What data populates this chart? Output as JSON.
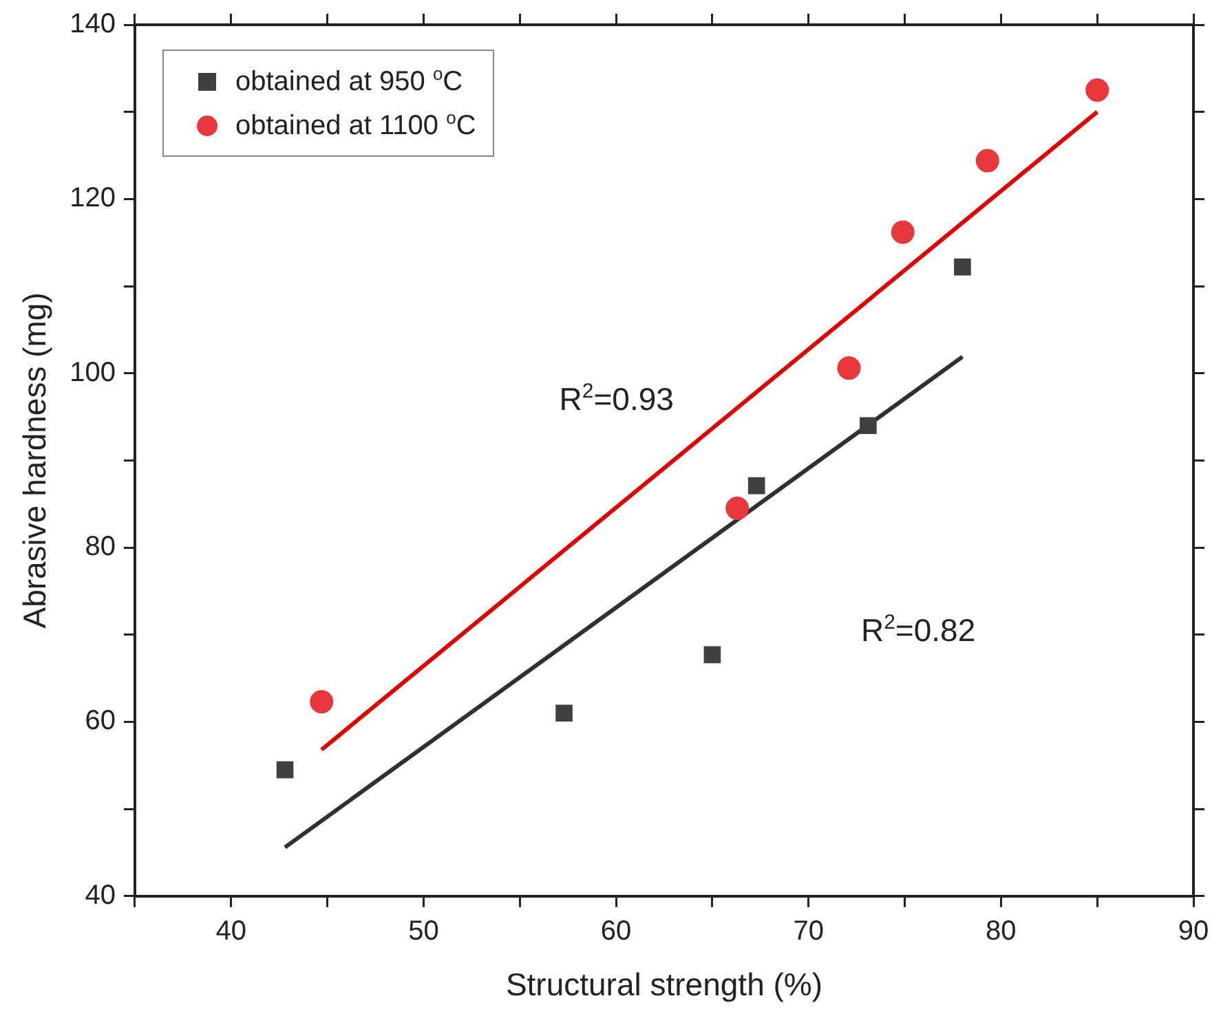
{
  "chart_data": {
    "type": "scatter",
    "xlabel": "Structural strength (%)",
    "ylabel": "Abrasive hardness (mg)",
    "xlim": [
      35,
      90
    ],
    "ylim": [
      40,
      140
    ],
    "xticks": [
      {
        "value": 35,
        "label": null
      },
      40,
      {
        "value": 45,
        "label": null
      },
      50,
      {
        "value": 55,
        "label": null
      },
      60,
      {
        "value": 65,
        "label": null
      },
      70,
      {
        "value": 75,
        "label": null
      },
      80,
      {
        "value": 85,
        "label": null
      },
      90
    ],
    "yticks": [
      40,
      {
        "value": 50,
        "label": null
      },
      60,
      {
        "value": 70,
        "label": null
      },
      80,
      {
        "value": 90,
        "label": null
      },
      100,
      {
        "value": 110,
        "label": null
      },
      120,
      {
        "value": 130,
        "label": null
      },
      140
    ],
    "grid": false,
    "legend": "top left",
    "series": [
      {
        "name": "obtained at 950 $^{o}$C",
        "color": "#404040",
        "marker": "square",
        "x": [
          42.8,
          57.3,
          65.0,
          67.3,
          73.1,
          78.0
        ],
        "values": [
          54.5,
          61.0,
          67.7,
          87.1,
          94.0,
          112.2
        ]
      },
      {
        "name": "obtained at 1100 $^{o}$C",
        "color": "#e8383d",
        "marker": "circle",
        "x": [
          44.7,
          66.3,
          72.1,
          74.9,
          79.3,
          85.0
        ],
        "values": [
          62.3,
          84.5,
          100.6,
          116.2,
          124.4,
          132.5
        ]
      },
      {
        "type": "line",
        "color": "#303030",
        "marker": "none",
        "x": [
          42.8,
          78.0
        ],
        "values": [
          45.6,
          101.9
        ]
      },
      {
        "type": "line",
        "color": "#e00000",
        "marker": "none",
        "x": [
          44.7,
          85.0
        ],
        "values": [
          56.8,
          130.0
        ]
      }
    ],
    "annotations": [
      "R$^{2}$=0.93",
      "R$^{2}$=0.82"
    ]
  }
}
